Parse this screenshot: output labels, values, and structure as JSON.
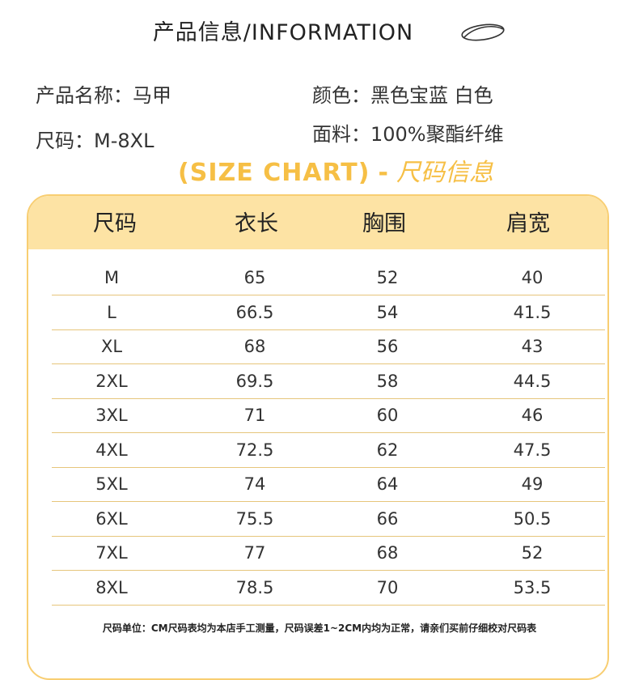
{
  "header": {
    "title": "产品信息/INFORMATION",
    "icon": "oval-swirl-icon"
  },
  "info": {
    "name": "产品名称：马甲",
    "size": "尺码：M-8XL",
    "color": "颜色：黑色宝蓝 白色",
    "fabric": "面料：100%聚酯纤维"
  },
  "size_chart": {
    "heading_en": "(SIZE CHART)",
    "heading_dash": "-",
    "heading_cn": "尺码信息",
    "columns": [
      "尺码",
      "衣长",
      "胸围",
      "肩宽"
    ],
    "rows": [
      [
        "M",
        "65",
        "52",
        "40"
      ],
      [
        "L",
        "66.5",
        "54",
        "41.5"
      ],
      [
        "XL",
        "68",
        "56",
        "43"
      ],
      [
        "2XL",
        "69.5",
        "58",
        "44.5"
      ],
      [
        "3XL",
        "71",
        "60",
        "46"
      ],
      [
        "4XL",
        "72.5",
        "62",
        "47.5"
      ],
      [
        "5XL",
        "74",
        "64",
        "49"
      ],
      [
        "6XL",
        "75.5",
        "66",
        "50.5"
      ],
      [
        "7XL",
        "77",
        "68",
        "52"
      ],
      [
        "8XL",
        "78.5",
        "70",
        "53.5"
      ]
    ]
  },
  "note": "尺码单位：CM尺码表均为本店手工测量，尺码误差1~2CM内均为正常，请亲们买前仔细校对尺码表",
  "colors": {
    "accent": "#F6BF45",
    "header_bg": "#FDE3A4",
    "rule": "#E6C57B"
  }
}
